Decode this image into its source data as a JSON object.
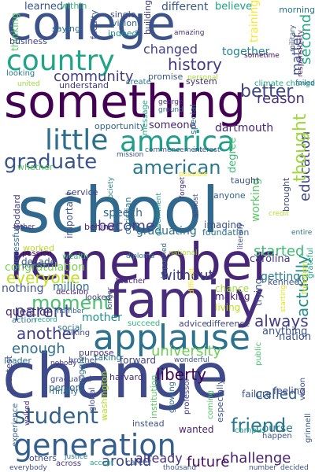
{
  "words": [
    {
      "text": "college",
      "color": "#3b528b"
    },
    {
      "text": "something",
      "color": "#440154"
    },
    {
      "text": "school",
      "color": "#31688e"
    },
    {
      "text": "remember",
      "color": "#482677"
    },
    {
      "text": "family",
      "color": "#472d7b"
    },
    {
      "text": "change",
      "color": "#3e4a89"
    },
    {
      "text": "applause",
      "color": "#2c728e"
    },
    {
      "text": "america",
      "color": "#1f9e89"
    },
    {
      "text": "country",
      "color": "#20a386"
    },
    {
      "text": "generation",
      "color": "#355f8d"
    },
    {
      "text": "little",
      "color": "#2d708e"
    },
    {
      "text": "student",
      "color": "#33638d"
    },
    {
      "text": "graduate",
      "color": "#39558c"
    },
    {
      "text": "american",
      "color": "#2a788e"
    },
    {
      "text": "history",
      "color": "#443983"
    },
    {
      "text": "community",
      "color": "#433e85"
    },
    {
      "text": "better",
      "color": "#3f4788"
    },
    {
      "text": "moment",
      "color": "#4ac16d"
    },
    {
      "text": "everyone",
      "color": "#c2df23"
    },
    {
      "text": "parent",
      "color": "#3e4989"
    },
    {
      "text": "another",
      "color": "#423f85"
    },
    {
      "text": "university",
      "color": "#6ece58"
    },
    {
      "text": "friend",
      "color": "#2b758e"
    },
    {
      "text": "challenge",
      "color": "#481f70"
    },
    {
      "text": "always",
      "color": "#433d84"
    },
    {
      "text": "actually",
      "color": "#21918c"
    },
    {
      "text": "education",
      "color": "#404588"
    },
    {
      "text": "thought",
      "color": "#9fda3a"
    },
    {
      "text": "reason",
      "color": "#46327e"
    },
    {
      "text": "second",
      "color": "#22a884"
    },
    {
      "text": "matter",
      "color": "#3b518b"
    },
    {
      "text": "become",
      "color": "#433e85"
    },
    {
      "text": "started",
      "color": "#3dbc74"
    },
    {
      "text": "enough",
      "color": "#2e6f8e"
    },
    {
      "text": "without",
      "color": "#414287"
    },
    {
      "text": "liberty",
      "color": "#450457"
    },
    {
      "text": "called",
      "color": "#34618d"
    },
    {
      "text": "course",
      "color": "#29798e"
    },
    {
      "text": "future",
      "color": "#471063"
    },
    {
      "text": "around",
      "color": "#3f4889"
    },
    {
      "text": "already",
      "color": "#46327e"
    },
    {
      "text": "congratulation",
      "color": "#7ad151"
    },
    {
      "text": "different",
      "color": "#38588c"
    },
    {
      "text": "changed",
      "color": "#424086"
    },
    {
      "text": "together",
      "color": "#25848e"
    },
    {
      "text": "learned",
      "color": "#3a548c"
    },
    {
      "text": "speech",
      "color": "#31688e"
    },
    {
      "text": "graduating",
      "color": "#2f6c8e"
    },
    {
      "text": "nothing",
      "color": "#3b528b"
    },
    {
      "text": "question",
      "color": "#482576"
    },
    {
      "text": "million",
      "color": "#2d708e"
    },
    {
      "text": "mother",
      "color": "#21918c"
    },
    {
      "text": "anything",
      "color": "#3b528b"
    },
    {
      "text": "getting",
      "color": "#2a768e"
    },
    {
      "text": "working",
      "color": "#58c765"
    },
    {
      "text": "dartmouth",
      "color": "#482878"
    },
    {
      "text": "believe",
      "color": "#1fa187"
    },
    {
      "text": "morning",
      "color": "#2b748e"
    },
    {
      "text": "within",
      "color": "#35b779"
    },
    {
      "text": "vision",
      "color": "#31688e"
    },
    {
      "text": "single",
      "color": "#3e4a89"
    },
    {
      "text": "faculty",
      "color": "#3b528b"
    },
    {
      "text": "saying",
      "color": "#2d708e"
    },
    {
      "text": "indeed",
      "color": "#228c8d"
    },
    {
      "text": "building",
      "color": "#424186"
    },
    {
      "text": "thinking",
      "color": "#58c765"
    },
    {
      "text": "business",
      "color": "#414487"
    },
    {
      "text": "training",
      "color": "#fde725"
    },
    {
      "text": "military",
      "color": "#3b528b"
    },
    {
      "text": "responsibility",
      "color": "#482475"
    },
    {
      "text": "amazing",
      "color": "#46327e"
    },
    {
      "text": "promise",
      "color": "#39568c"
    },
    {
      "text": "personal",
      "color": "#a8db34"
    },
    {
      "text": "sometime",
      "color": "#46085c"
    },
    {
      "text": "looking",
      "color": "#2a778e"
    },
    {
      "text": "united",
      "color": "#9bd93c"
    },
    {
      "text": "understand",
      "color": "#453882"
    },
    {
      "text": "create",
      "color": "#2a788e"
    },
    {
      "text": "system",
      "color": "#46327e"
    },
    {
      "text": "climate change",
      "color": "#21a685"
    },
    {
      "text": "failed",
      "color": "#2e6d8e"
    },
    {
      "text": "george",
      "color": "#463480"
    },
    {
      "text": "ground",
      "color": "#2f6c8e"
    },
    {
      "text": "opportunity",
      "color": "#33638d"
    },
    {
      "text": "message",
      "color": "#22a884"
    },
    {
      "text": "someone",
      "color": "#482677"
    },
    {
      "text": "special",
      "color": "#2c728e"
    },
    {
      "text": "degree",
      "color": "#3dbc74"
    },
    {
      "text": "taught",
      "color": "#3b528b"
    },
    {
      "text": "interest",
      "color": "#365c8d"
    },
    {
      "text": "commencement",
      "color": "#355f8d"
    },
    {
      "text": "mission",
      "color": "#3a548c"
    },
    {
      "text": "whether",
      "color": "#5ec962"
    },
    {
      "text": "service",
      "color": "#3f4788"
    },
    {
      "text": "society",
      "color": "#25848e"
    },
    {
      "text": "christian",
      "color": "#2c738e"
    },
    {
      "text": "government",
      "color": "#1f988b"
    },
    {
      "text": "forget",
      "color": "#46327e"
    },
    {
      "text": "almost",
      "color": "#3e4989"
    },
    {
      "text": "possible",
      "color": "#fde725"
    },
    {
      "text": "anyone",
      "color": "#34618d"
    },
    {
      "text": "credit",
      "color": "#b5de2b"
    },
    {
      "text": "brought",
      "color": "#3e4a89"
    },
    {
      "text": "entire",
      "color": "#2c728e"
    },
    {
      "text": "goddard",
      "color": "#433e85"
    },
    {
      "text": "father",
      "color": "#472c7a"
    },
    {
      "text": "important",
      "color": "#3b528b"
    },
    {
      "text": "behind",
      "color": "#482173"
    },
    {
      "text": "imagine",
      "color": "#3b518b"
    },
    {
      "text": "foundation",
      "color": "#2e6e8e"
    },
    {
      "text": "national",
      "color": "#aadc32"
    },
    {
      "text": "successful",
      "color": "#2f6b8e"
    },
    {
      "text": "passion",
      "color": "#440154"
    },
    {
      "text": "decade",
      "color": "#38588c"
    },
    {
      "text": "political",
      "color": "#3b528b"
    },
    {
      "text": "worked",
      "color": "#b8de29"
    },
    {
      "text": "wealth",
      "color": "#3dbc74"
    },
    {
      "text": "diploma",
      "color": "#2a788e"
    },
    {
      "text": "teacher",
      "color": "#482878"
    },
    {
      "text": "happened",
      "color": "#31688e"
    },
    {
      "text": "literally",
      "color": "#3e4989"
    },
    {
      "text": "carolina",
      "color": "#443a83"
    },
    {
      "text": "kennedy",
      "color": "#3a538b"
    },
    {
      "text": "grateful",
      "color": "#20a386"
    },
    {
      "text": "freedom",
      "color": "#c8e020"
    },
    {
      "text": "decision",
      "color": "#482071"
    },
    {
      "text": "looked",
      "color": "#423f85"
    },
    {
      "text": "longer",
      "color": "#3e4a89"
    },
    {
      "text": "difficult",
      "color": "#fde725"
    },
    {
      "text": "chance",
      "color": "#a2da37"
    },
    {
      "text": "making",
      "color": "#482677"
    },
    {
      "text": "living",
      "color": "#c2df23"
    },
    {
      "text": "trying",
      "color": "#3b528b"
    },
    {
      "text": "starting",
      "color": "#e7e419"
    },
    {
      "text": "action",
      "color": "#2e6e8e"
    },
    {
      "text": "record",
      "color": "#22a884"
    },
    {
      "text": "member",
      "color": "#365c8d"
    },
    {
      "text": "succeed",
      "color": "#2fb47c"
    },
    {
      "text": "advice",
      "color": "#404588"
    },
    {
      "text": "difference",
      "color": "#3f4788"
    },
    {
      "text": "nation",
      "color": "#3c4f8a"
    },
    {
      "text": "social",
      "color": "#2c728e"
    },
    {
      "text": "talking",
      "color": "#3e4989"
    },
    {
      "text": "purpose",
      "color": "#46337f"
    },
    {
      "text": "leader",
      "color": "#2d718e"
    },
    {
      "text": "brother",
      "color": "#3b528b"
    },
    {
      "text": "taking",
      "color": "#2c728e"
    },
    {
      "text": "forward",
      "color": "#404688"
    },
    {
      "text": "wonderful",
      "color": "#3a548c"
    },
    {
      "text": "public",
      "color": "#4ac16d"
    },
    {
      "text": "harvard",
      "color": "#472d7b"
    },
    {
      "text": "graduated",
      "color": "#3e4c8a"
    },
    {
      "text": "person",
      "color": "#34608d"
    },
    {
      "text": "greatest",
      "color": "#3f4889"
    },
    {
      "text": "struggle",
      "color": "#2f6c8e"
    },
    {
      "text": "global",
      "color": "#3f4788"
    },
    {
      "text": "washington",
      "color": "#b5de2b"
    },
    {
      "text": "institution",
      "color": "#5ec962"
    },
    {
      "text": "growing",
      "color": "#31688e"
    },
    {
      "text": "professor",
      "color": "#433e85"
    },
    {
      "text": "coming",
      "color": "#4ec36b"
    },
    {
      "text": "especially",
      "color": "#3b528b"
    },
    {
      "text": "failure",
      "color": "#3b528b"
    },
    {
      "text": "feeling",
      "color": "#3e4989"
    },
    {
      "text": "vision",
      "color": "#3b528b"
    },
    {
      "text": "finally",
      "color": "#2c728e"
    },
    {
      "text": "nobody",
      "color": "#453781"
    },
    {
      "text": "instead",
      "color": "#3b528b"
    },
    {
      "text": "wanted",
      "color": "#482475"
    },
    {
      "text": "campus",
      "color": "#1f998a"
    },
    {
      "text": "happen",
      "color": "#3b528b"
    },
    {
      "text": "grinnell",
      "color": "#38588c"
    },
    {
      "text": "experience",
      "color": "#33638d"
    },
    {
      "text": "walked",
      "color": "#482677"
    },
    {
      "text": "others",
      "color": "#3e4a89"
    },
    {
      "text": "justice",
      "color": "#2a788e"
    },
    {
      "text": "across",
      "color": "#46327e"
    },
    {
      "text": "accept",
      "color": "#22a884"
    },
    {
      "text": "career",
      "color": "#3b528b"
    },
    {
      "text": "thousand",
      "color": "#3b528b"
    },
    {
      "text": "everybody",
      "color": "#3e4989"
    },
    {
      "text": "number",
      "color": "#3b528b"
    },
    {
      "text": "decided",
      "color": "#3b528b"
    }
  ]
}
